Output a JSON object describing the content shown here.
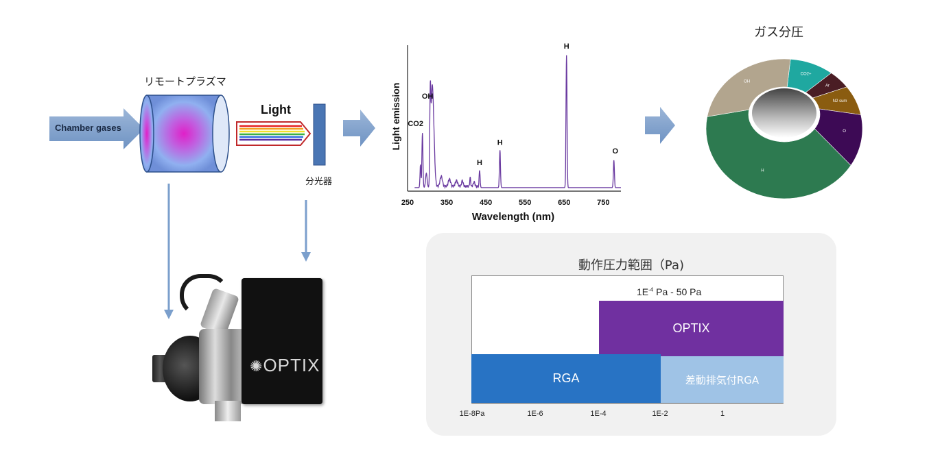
{
  "flow": {
    "chamber_label": "Chamber gases",
    "plasma_label": "リモートプラズマ",
    "light_label": "Light",
    "spectrometer_label": "分光器"
  },
  "spectrum": {
    "ylabel": "Light emission",
    "xlabel": "Wavelength (nm)",
    "x_ticks": [
      "250",
      "350",
      "450",
      "550",
      "650",
      "750"
    ],
    "peaks": [
      {
        "label": "CO2",
        "wavelength": 288,
        "intensity": 0.38
      },
      {
        "label": "OH",
        "wavelength": 308,
        "intensity": 0.58
      },
      {
        "label": "H",
        "wavelength": 434,
        "intensity": 0.12
      },
      {
        "label": "H",
        "wavelength": 486,
        "intensity": 0.26
      },
      {
        "label": "H",
        "wavelength": 656,
        "intensity": 0.92
      },
      {
        "label": "O",
        "wavelength": 777,
        "intensity": 0.19
      }
    ]
  },
  "donut": {
    "title": "ガス分圧",
    "segments": [
      {
        "label": "CO2+",
        "fraction": 0.09,
        "color": "#1fa8a0"
      },
      {
        "label": "Ar",
        "fraction": 0.045,
        "color": "#4a1d24"
      },
      {
        "label": "N2 sum",
        "fraction": 0.07,
        "color": "#8a5c10"
      },
      {
        "label": "O",
        "fraction": 0.12,
        "color": "#3d0a55"
      },
      {
        "label": "H",
        "fraction": 0.44,
        "color": "#2d7a50"
      },
      {
        "label": "OH",
        "fraction": 0.235,
        "color": "#b2a58e"
      }
    ]
  },
  "device": {
    "brand": "OPTIX"
  },
  "range_chart": {
    "title": "動作圧力範囲（Pa)",
    "optix_range_prefix": "1E",
    "optix_range_exp": "-4",
    "optix_range_suffix": " Pa - 50 Pa",
    "bars": {
      "optix": "OPTIX",
      "rga": "RGA",
      "diff_rga": "差動排気付RGA"
    },
    "x_ticks": [
      "1E-8Pa",
      "1E-6",
      "1E-4",
      "1E-2",
      "1"
    ],
    "colors": {
      "optix": "#7030a0",
      "rga": "#2873c4",
      "diff_rga": "#9fc3e6"
    }
  }
}
